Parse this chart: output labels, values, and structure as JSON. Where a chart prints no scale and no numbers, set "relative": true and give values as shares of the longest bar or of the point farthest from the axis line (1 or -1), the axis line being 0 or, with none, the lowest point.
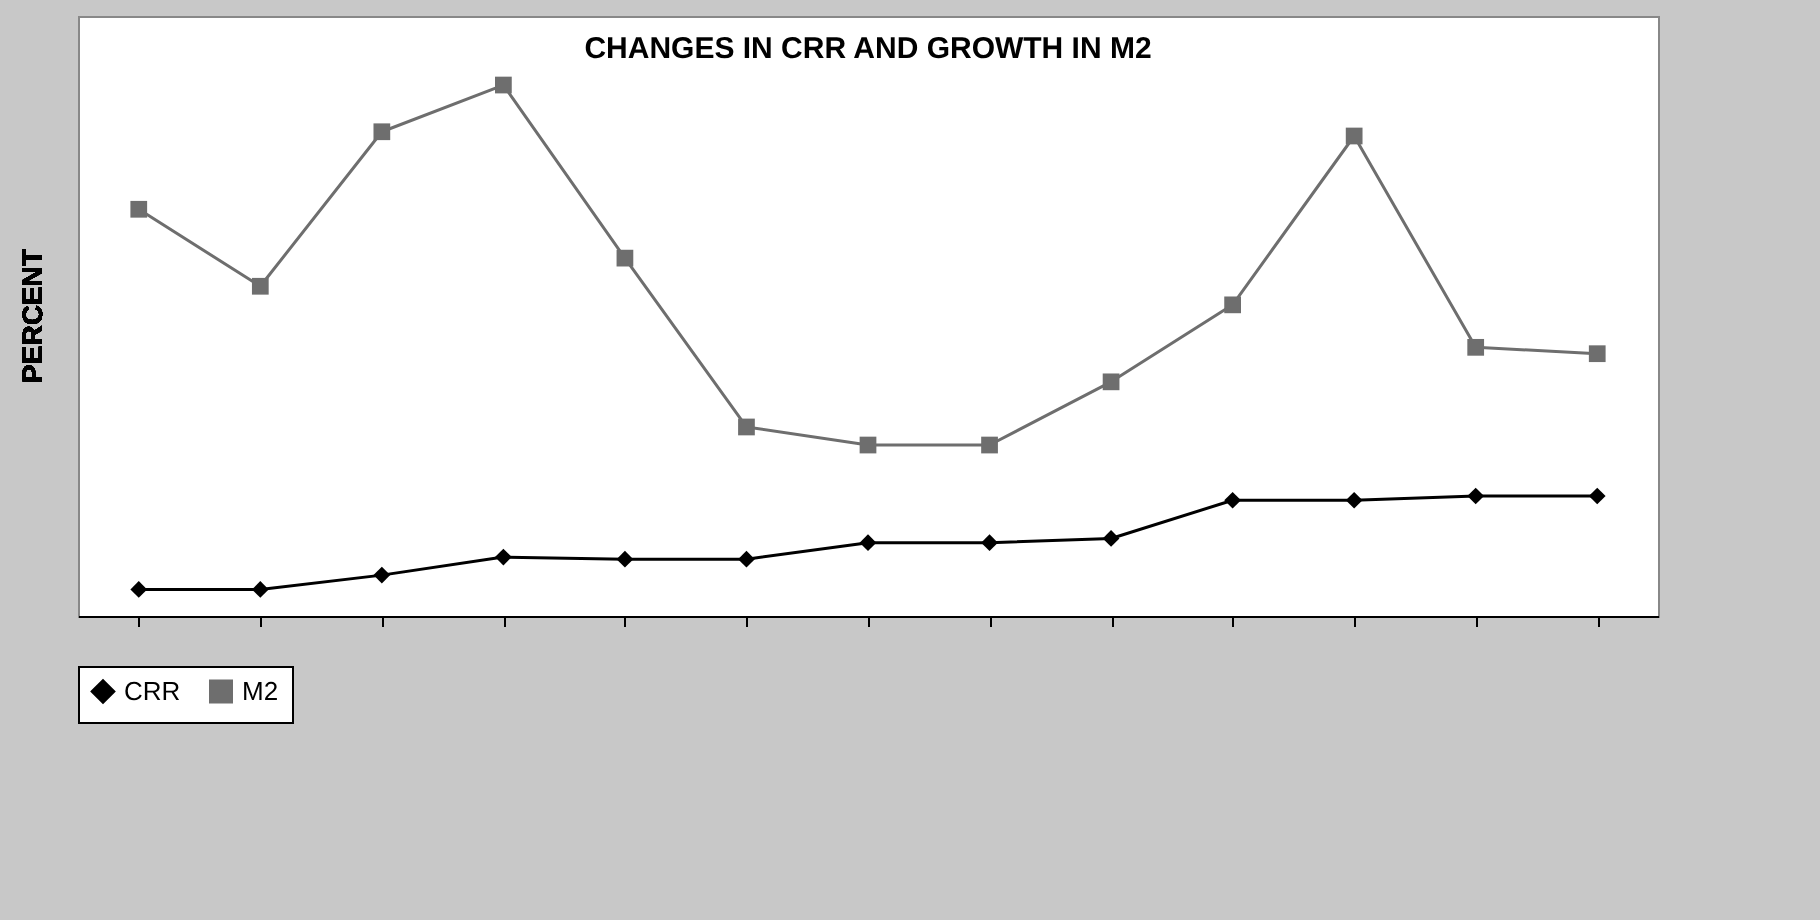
{
  "chart_data": {
    "type": "line",
    "title": "CHANGES IN CRR AND GROWTH IN M2",
    "ylabel": "PERCENT",
    "relative": true,
    "legend": "bottom",
    "grid": false,
    "categories": [
      null,
      null,
      null,
      null,
      null,
      null,
      null,
      null,
      null,
      null,
      null,
      null,
      null
    ],
    "series": [
      {
        "name": "CRR",
        "color": "#000000",
        "marker": "diamond",
        "values": [
          0.05,
          0.05,
          0.077,
          0.111,
          0.107,
          0.107,
          0.138,
          0.138,
          0.146,
          0.218,
          0.218,
          0.226,
          0.226
        ]
      },
      {
        "name": "M2",
        "color": "#6e6e6e",
        "marker": "square",
        "values": [
          0.766,
          0.621,
          0.912,
          1,
          0.674,
          0.356,
          0.322,
          0.322,
          0.441,
          0.586,
          0.904,
          0.506,
          0.494
        ]
      }
    ]
  }
}
